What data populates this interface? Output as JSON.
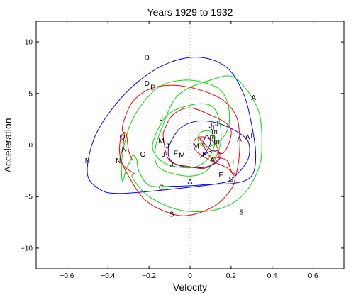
{
  "chart_data": {
    "type": "line",
    "title": "Years 1929 to 1932",
    "xlabel": "Velocity",
    "ylabel": "Acceleration",
    "xlim": [
      -0.75,
      0.75
    ],
    "ylim": [
      -12,
      12
    ],
    "xticks": [
      -0.6,
      -0.4,
      -0.2,
      0,
      0.2,
      0.4,
      0.6
    ],
    "xtick_labels": [
      "−0.6",
      "−0.4",
      "−0.2",
      "0",
      "0.2",
      "0.4",
      "0.6"
    ],
    "yticks": [
      10,
      5,
      0,
      -5,
      -10
    ],
    "ytick_labels": [
      "10",
      "5",
      "0",
      "−5",
      "−10"
    ],
    "grid": false,
    "zero_lines": true,
    "series": [
      {
        "color": "#0000ff",
        "points": [
          [
            0.06,
            0.0
          ],
          [
            0.08,
            0.9
          ],
          [
            0.1,
            0.3
          ],
          [
            0.08,
            -0.6
          ],
          [
            0.05,
            -1.2
          ],
          [
            0.07,
            -0.9
          ],
          [
            0.12,
            -0.5
          ],
          [
            0.15,
            -1.0
          ],
          [
            0.12,
            -1.8
          ],
          [
            0.05,
            -2.2
          ],
          [
            -0.05,
            -2.0
          ],
          [
            -0.1,
            -1.3
          ],
          [
            -0.1,
            0.0
          ],
          [
            -0.05,
            1.6
          ],
          [
            0.03,
            2.3
          ],
          [
            0.12,
            2.2
          ],
          [
            0.2,
            1.6
          ],
          [
            0.27,
            0.7
          ],
          [
            0.29,
            -0.2
          ],
          [
            0.28,
            -1.5
          ],
          [
            0.22,
            -3.0
          ],
          [
            0.15,
            -3.7
          ],
          [
            -0.15,
            -4.4
          ],
          [
            -0.35,
            -4.7
          ],
          [
            -0.44,
            -4.3
          ],
          [
            -0.5,
            -2.8
          ],
          [
            -0.47,
            0.5
          ],
          [
            -0.38,
            3.5
          ],
          [
            -0.25,
            6.2
          ],
          [
            -0.1,
            8.0
          ],
          [
            0.05,
            8.5
          ],
          [
            0.18,
            7.5
          ],
          [
            0.26,
            5.0
          ],
          [
            0.3,
            2.0
          ],
          [
            0.32,
            -1.0
          ],
          [
            0.3,
            -3.0
          ],
          [
            0.22,
            -3.7
          ],
          [
            0.1,
            -3.8
          ],
          [
            0.0,
            -3.95
          ],
          [
            -0.1,
            -4.0
          ]
        ]
      },
      {
        "color": "#00dd00",
        "points": [
          [
            -0.1,
            -4.0
          ],
          [
            -0.2,
            -3.9
          ],
          [
            -0.25,
            -2.5
          ],
          [
            -0.26,
            -1.4
          ],
          [
            -0.28,
            -1.0
          ],
          [
            -0.29,
            -1.5
          ],
          [
            -0.31,
            -2.3
          ],
          [
            -0.33,
            -3.5
          ],
          [
            -0.33,
            -1.0
          ],
          [
            -0.28,
            2.5
          ],
          [
            -0.16,
            5.5
          ],
          [
            -0.02,
            6.3
          ],
          [
            0.12,
            5.7
          ],
          [
            0.18,
            4.3
          ],
          [
            0.19,
            2.0
          ],
          [
            0.15,
            0.5
          ],
          [
            0.08,
            -0.2
          ],
          [
            0.04,
            0.4
          ],
          [
            0.05,
            1.2
          ],
          [
            0.1,
            1.3
          ],
          [
            0.12,
            0.1
          ],
          [
            0.08,
            -1.5
          ],
          [
            0.0,
            -2.2
          ],
          [
            -0.12,
            -1.8
          ],
          [
            -0.18,
            -0.5
          ],
          [
            -0.17,
            0.9
          ],
          [
            -0.12,
            2.7
          ],
          [
            -0.06,
            3.5
          ],
          [
            0.05,
            4.0
          ],
          [
            0.12,
            3.5
          ],
          [
            0.15,
            1.5
          ],
          [
            0.14,
            -0.5
          ],
          [
            0.08,
            -2.5
          ],
          [
            -0.02,
            -3.0
          ],
          [
            -0.15,
            -2.2
          ],
          [
            -0.17,
            -0.5
          ],
          [
            -0.14,
            1.5
          ],
          [
            -0.06,
            4.8
          ],
          [
            0.1,
            6.3
          ],
          [
            0.22,
            6.5
          ],
          [
            0.33,
            3.5
          ],
          [
            0.35,
            0.0
          ],
          [
            0.33,
            -2.5
          ],
          [
            0.25,
            -5.0
          ],
          [
            0.12,
            -6.3
          ],
          [
            -0.05,
            -6.3
          ],
          [
            -0.2,
            -5.0
          ],
          [
            -0.28,
            -3.2
          ],
          [
            -0.27,
            -2.8
          ]
        ]
      },
      {
        "color": "#ff0000",
        "points": [
          [
            -0.27,
            -2.8
          ],
          [
            -0.32,
            -2.1
          ],
          [
            -0.34,
            -1.3
          ],
          [
            -0.33,
            -0.5
          ],
          [
            -0.32,
            0.9
          ],
          [
            -0.32,
            1.2
          ],
          [
            -0.34,
            0.5
          ],
          [
            -0.34,
            -1.2
          ],
          [
            -0.3,
            -3.0
          ],
          [
            -0.22,
            -5.3
          ],
          [
            -0.1,
            -6.6
          ],
          [
            0.0,
            -6.8
          ],
          [
            0.12,
            -5.9
          ],
          [
            0.2,
            -4.3
          ],
          [
            0.22,
            -3.0
          ],
          [
            0.2,
            -2.5
          ],
          [
            0.18,
            -1.5
          ],
          [
            0.13,
            -1.2
          ],
          [
            0.1,
            -1.2
          ],
          [
            0.05,
            0.5
          ],
          [
            0.06,
            0.4
          ],
          [
            0.09,
            -0.3
          ],
          [
            0.12,
            -0.6
          ],
          [
            0.16,
            -0.8
          ],
          [
            0.19,
            0.2
          ],
          [
            0.2,
            1.4
          ],
          [
            0.17,
            2.2
          ],
          [
            0.1,
            2.9
          ],
          [
            0.0,
            3.6
          ],
          [
            -0.08,
            3.0
          ],
          [
            -0.12,
            1.7
          ],
          [
            -0.13,
            0.7
          ],
          [
            -0.1,
            -1.5
          ],
          [
            0.0,
            -2.1
          ],
          [
            0.08,
            -2.2
          ],
          [
            0.14,
            -1.2
          ],
          [
            0.12,
            0.2
          ],
          [
            0.06,
            0.8
          ],
          [
            0.02,
            0.4
          ],
          [
            0.03,
            -0.6
          ],
          [
            0.1,
            -1.5
          ],
          [
            0.18,
            -2.2
          ],
          [
            0.22,
            -2.9
          ],
          [
            0.24,
            -1.0
          ],
          [
            0.24,
            1.3
          ],
          [
            0.22,
            3.0
          ],
          [
            0.15,
            4.5
          ],
          [
            0.02,
            5.5
          ],
          [
            -0.1,
            5.8
          ],
          [
            -0.2,
            5.4
          ],
          [
            -0.28,
            4.2
          ],
          [
            -0.32,
            2.5
          ],
          [
            -0.33,
            1.4
          ],
          [
            -0.31,
            1.0
          ],
          [
            -0.3,
            -0.5
          ],
          [
            -0.28,
            -1.5
          ]
        ]
      }
    ],
    "point_labels": [
      {
        "text": "D",
        "x": -0.21,
        "y": 6.0
      },
      {
        "text": "D",
        "x": -0.18,
        "y": 5.6
      },
      {
        "text": "D",
        "x": -0.21,
        "y": 8.5
      },
      {
        "text": "A",
        "x": 0.31,
        "y": 4.6
      },
      {
        "text": "J",
        "x": 0.13,
        "y": 2.1
      },
      {
        "text": "J",
        "x": 0.1,
        "y": 1.9
      },
      {
        "text": "J",
        "x": 0.11,
        "y": 1.7
      },
      {
        "text": "m",
        "x": 0.12,
        "y": 1.3
      },
      {
        "text": "m",
        "x": 0.11,
        "y": 0.8
      },
      {
        "text": "m",
        "x": 0.13,
        "y": 0.3
      },
      {
        "text": "I",
        "x": 0.3,
        "y": 0.9
      },
      {
        "text": "A",
        "x": 0.28,
        "y": 0.8
      },
      {
        "text": "A",
        "x": 0.24,
        "y": 0.6
      },
      {
        "text": "O",
        "x": -0.33,
        "y": 0.8
      },
      {
        "text": "N",
        "x": -0.32,
        "y": -0.4
      },
      {
        "text": "N",
        "x": -0.35,
        "y": -1.5
      },
      {
        "text": "N",
        "x": -0.5,
        "y": -1.5
      },
      {
        "text": "O",
        "x": -0.23,
        "y": -0.9
      },
      {
        "text": "M",
        "x": -0.14,
        "y": 0.4
      },
      {
        "text": "J",
        "x": -0.14,
        "y": 2.6
      },
      {
        "text": "J",
        "x": -0.11,
        "y": -0.1
      },
      {
        "text": "J",
        "x": -0.13,
        "y": -0.9
      },
      {
        "text": "J",
        "x": -0.09,
        "y": -1.9
      },
      {
        "text": "F",
        "x": -0.07,
        "y": -0.8
      },
      {
        "text": "M",
        "x": -0.04,
        "y": -1.0
      },
      {
        "text": "M",
        "x": 0.03,
        "y": -0.1
      },
      {
        "text": "F",
        "x": 0.07,
        "y": -0.9
      },
      {
        "text": "A",
        "x": 0.11,
        "y": -1.4
      },
      {
        "text": "I",
        "x": 0.21,
        "y": -1.6
      },
      {
        "text": "F",
        "x": 0.15,
        "y": -2.9
      },
      {
        "text": "A",
        "x": 0.0,
        "y": -3.5
      },
      {
        "text": "C",
        "x": -0.14,
        "y": -4.1
      },
      {
        "text": "S",
        "x": 0.2,
        "y": -3.3
      },
      {
        "text": "S",
        "x": -0.09,
        "y": -6.7
      },
      {
        "text": "S",
        "x": 0.25,
        "y": -6.5
      }
    ]
  }
}
